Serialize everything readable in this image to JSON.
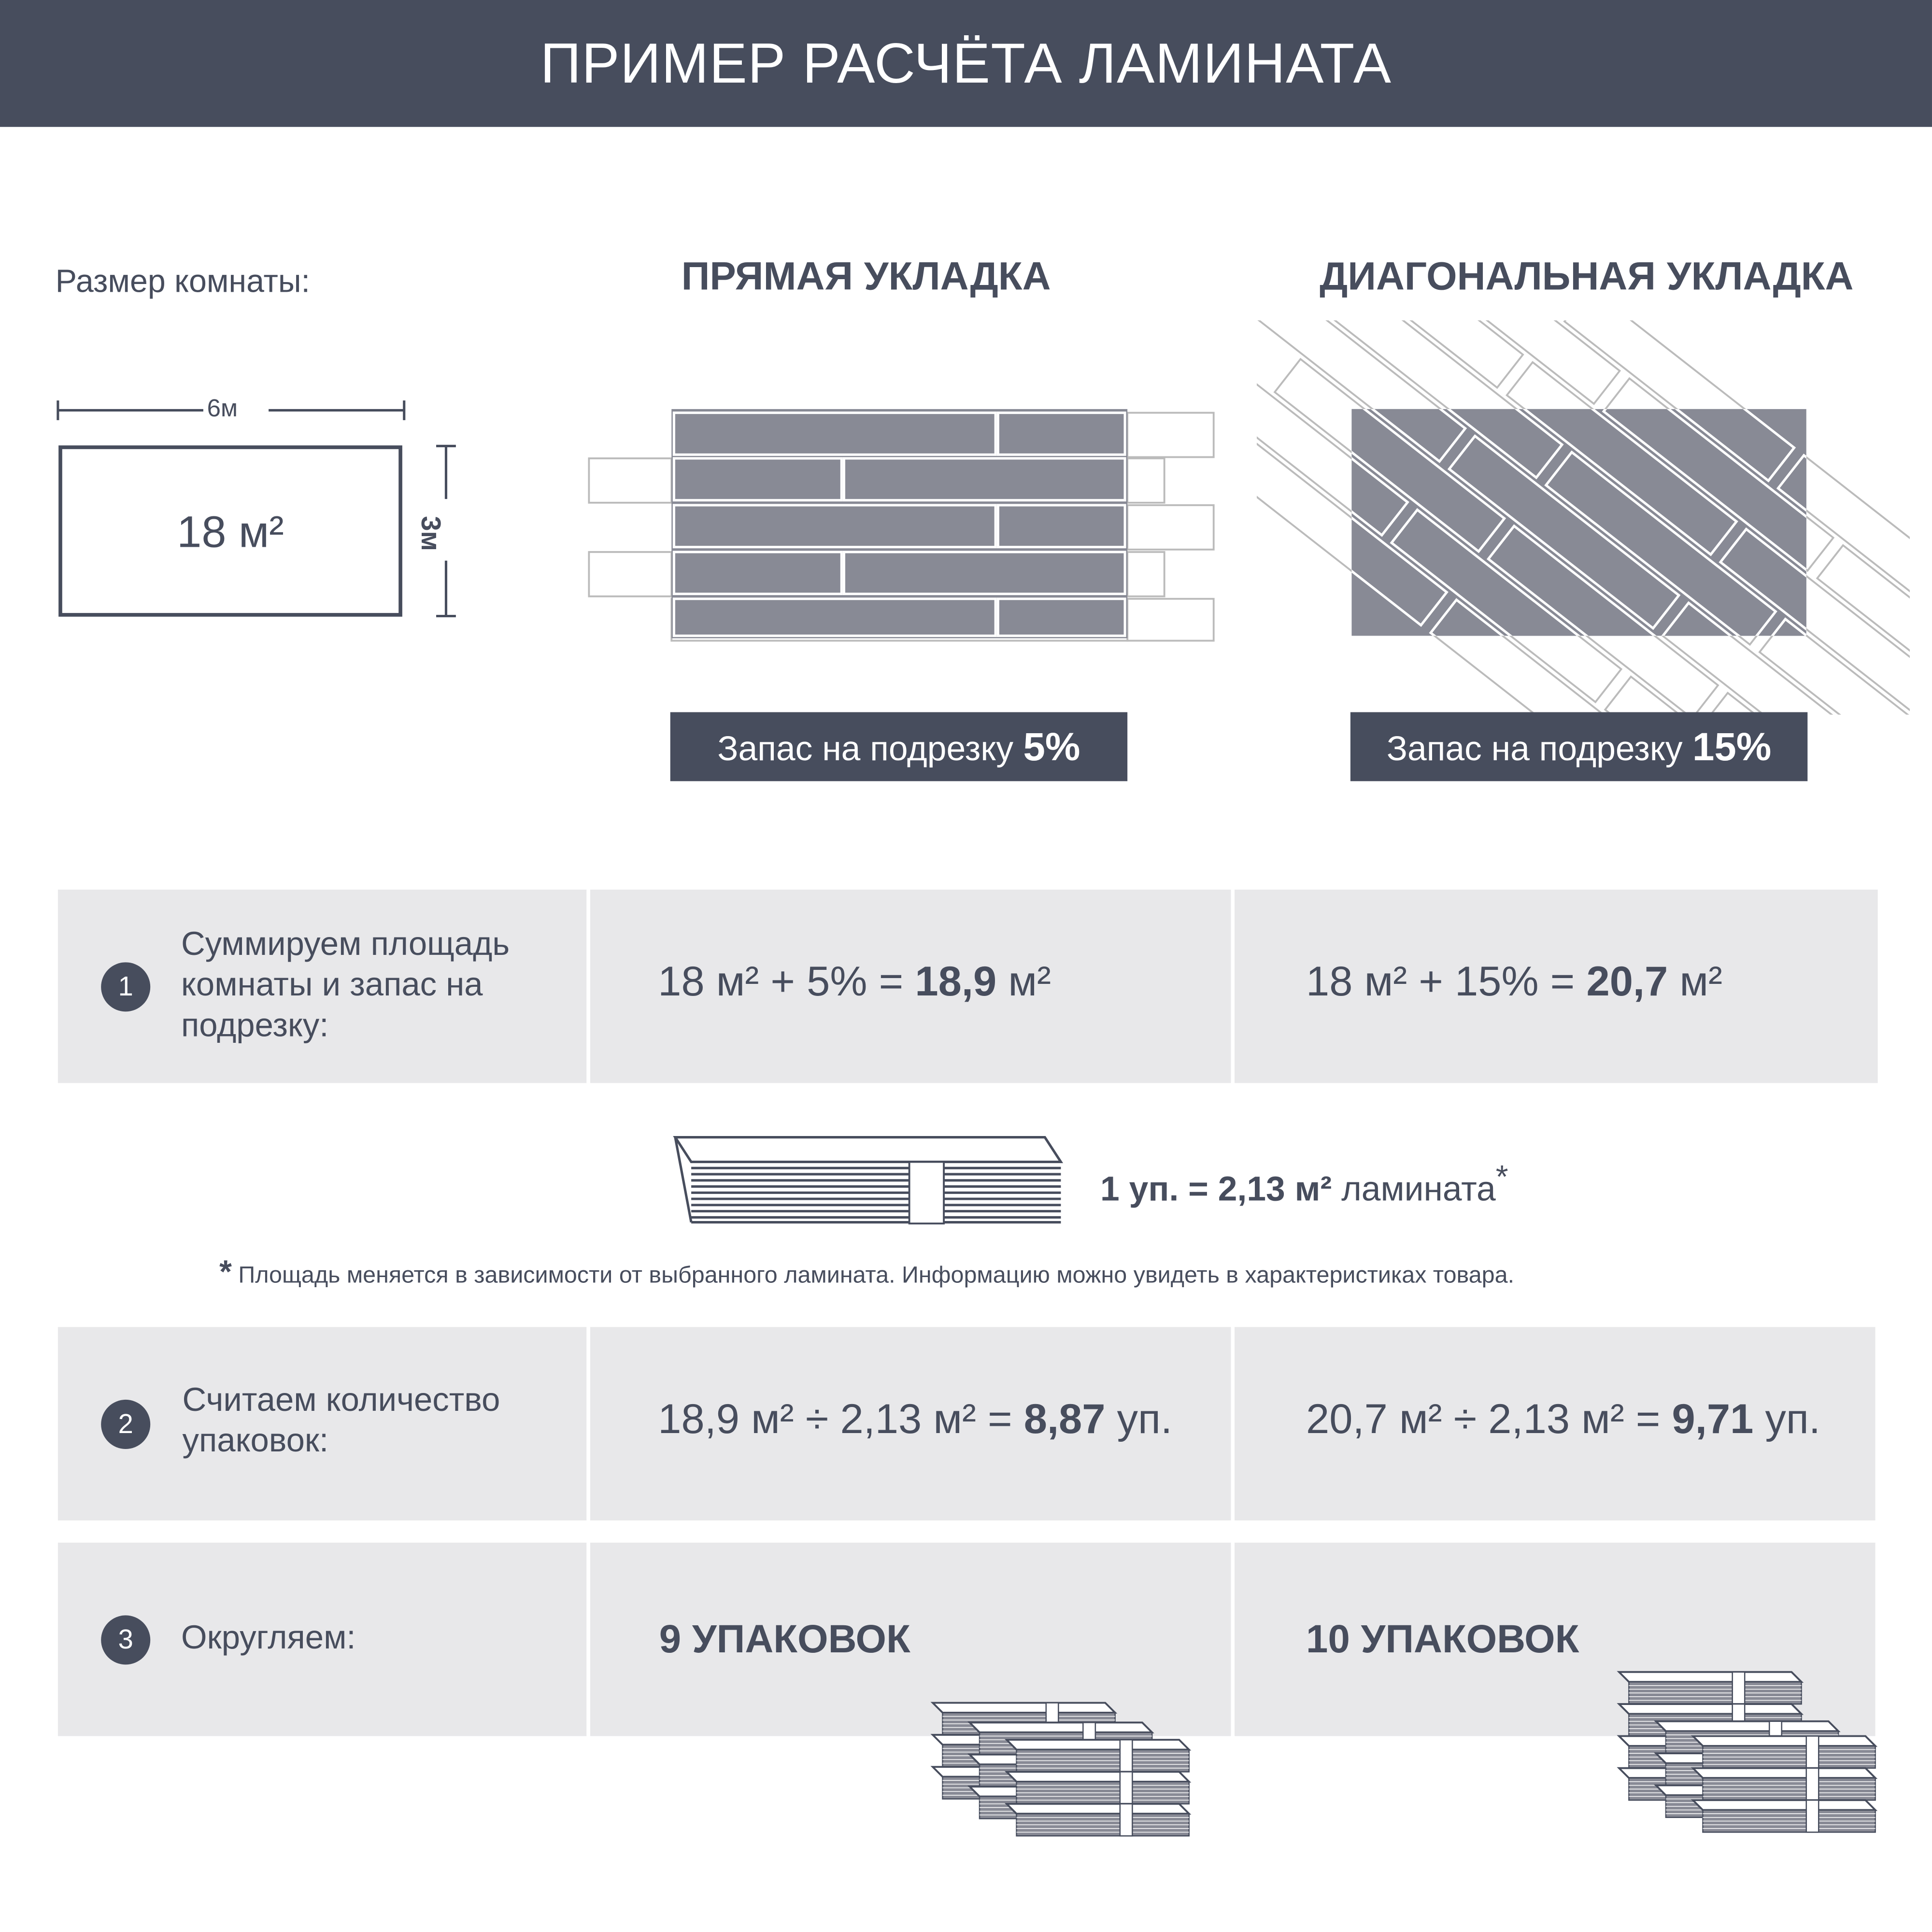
{
  "header": {
    "title": "ПРИМЕР РАСЧЁТА ЛАМИНАТА"
  },
  "room": {
    "label": "Размер комнаты:",
    "width": "6м",
    "height": "3м",
    "area": "18 м²"
  },
  "straight": {
    "title": "ПРЯМАЯ УКЛАДКА",
    "waste_label": "Запас на подрезку",
    "waste_value": "5%"
  },
  "diagonal": {
    "title": "ДИАГОНАЛЬНАЯ УКЛАДКА",
    "waste_label": "Запас на подрезку",
    "waste_value": "15%"
  },
  "steps": [
    {
      "number": "1",
      "label": "Суммируем площадь комнаты и запас на подрезку:",
      "straight": {
        "expr": "18 м² + 5% = ",
        "result": "18,9",
        "unit": " м²"
      },
      "diagonal": {
        "expr": "18 м² + 15% = ",
        "result": "20,7",
        "unit": " м²"
      }
    },
    {
      "number": "2",
      "label": "Считаем количество упаковок:",
      "straight": {
        "expr": "18,9 м² ÷ 2,13 м² = ",
        "result": "8,87",
        "unit": " уп."
      },
      "diagonal": {
        "expr": "20,7 м² ÷ 2,13 м² = ",
        "result": "9,71",
        "unit": " уп."
      }
    },
    {
      "number": "3",
      "label": "Округляем:",
      "straight": {
        "result": "9 УПАКОВОК"
      },
      "diagonal": {
        "result": "10 УПАКОВОК"
      }
    }
  ],
  "package": {
    "prefix": "1 уп. = ",
    "value": "2,13 м²",
    "suffix": " ламината",
    "asterisk": "*"
  },
  "footnote": {
    "asterisk": "*",
    "text": "Площадь меняется в зависимости от выбранного ламината. Информацию можно увидеть в характеристиках товара."
  },
  "colors": {
    "dark": "#474d5d",
    "plank": "#888a95",
    "row_bg": "#e8e8ea"
  }
}
